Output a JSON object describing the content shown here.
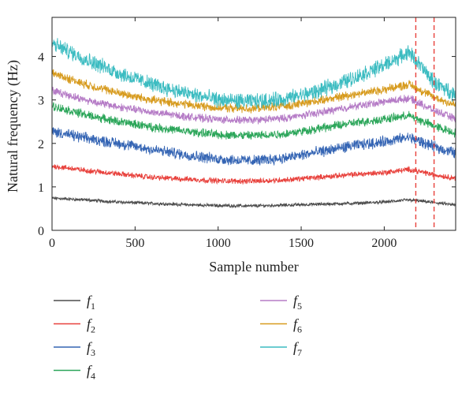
{
  "chart_data": {
    "type": "line",
    "xlabel": "Sample number",
    "ylabel": "Natural frequency (Hz)",
    "xlim": [
      0,
      2430
    ],
    "ylim": [
      0,
      4.9
    ],
    "x_ticks": [
      0,
      500,
      1000,
      1500,
      2000
    ],
    "y_ticks": [
      0,
      1,
      2,
      3,
      4
    ],
    "grid": false,
    "legend_position": "below",
    "x": [
      0,
      200,
      400,
      600,
      800,
      1000,
      1200,
      1400,
      1600,
      1800,
      2000,
      2150,
      2300,
      2430
    ],
    "series": [
      {
        "name": "f",
        "sub": "1",
        "color": "#4d4d4d",
        "noise": 0.03,
        "values": [
          0.74,
          0.7,
          0.65,
          0.62,
          0.59,
          0.57,
          0.56,
          0.58,
          0.6,
          0.62,
          0.65,
          0.7,
          0.64,
          0.58
        ]
      },
      {
        "name": "f",
        "sub": "2",
        "color": "#e8413c",
        "noise": 0.05,
        "values": [
          1.48,
          1.38,
          1.3,
          1.22,
          1.18,
          1.14,
          1.13,
          1.16,
          1.22,
          1.28,
          1.33,
          1.4,
          1.28,
          1.2
        ]
      },
      {
        "name": "f",
        "sub": "3",
        "color": "#3565b4",
        "noise": 0.1,
        "values": [
          2.28,
          2.12,
          2.0,
          1.86,
          1.74,
          1.64,
          1.6,
          1.66,
          1.8,
          1.94,
          2.04,
          2.14,
          1.92,
          1.78
        ]
      },
      {
        "name": "f",
        "sub": "4",
        "color": "#2ca65a",
        "noise": 0.08,
        "values": [
          2.86,
          2.66,
          2.5,
          2.38,
          2.28,
          2.2,
          2.18,
          2.22,
          2.34,
          2.46,
          2.56,
          2.64,
          2.4,
          2.24
        ]
      },
      {
        "name": "f",
        "sub": "5",
        "color": "#b57bc6",
        "noise": 0.07,
        "values": [
          3.22,
          3.0,
          2.84,
          2.72,
          2.62,
          2.55,
          2.53,
          2.58,
          2.7,
          2.84,
          2.96,
          3.04,
          2.76,
          2.56
        ]
      },
      {
        "name": "f",
        "sub": "6",
        "color": "#d79b1e",
        "noise": 0.08,
        "values": [
          3.62,
          3.36,
          3.16,
          3.0,
          2.9,
          2.82,
          2.8,
          2.86,
          2.98,
          3.12,
          3.24,
          3.36,
          3.06,
          2.88
        ]
      },
      {
        "name": "f",
        "sub": "7",
        "color": "#3cbcc1",
        "noise": 0.14,
        "values": [
          4.3,
          3.94,
          3.62,
          3.36,
          3.16,
          3.0,
          2.96,
          3.02,
          3.2,
          3.48,
          3.8,
          4.1,
          3.4,
          3.12
        ]
      }
    ],
    "vertical_lines": [
      {
        "x": 2190,
        "color": "#e8413c",
        "style": "dashed"
      },
      {
        "x": 2300,
        "color": "#e8413c",
        "style": "dashed"
      }
    ]
  }
}
